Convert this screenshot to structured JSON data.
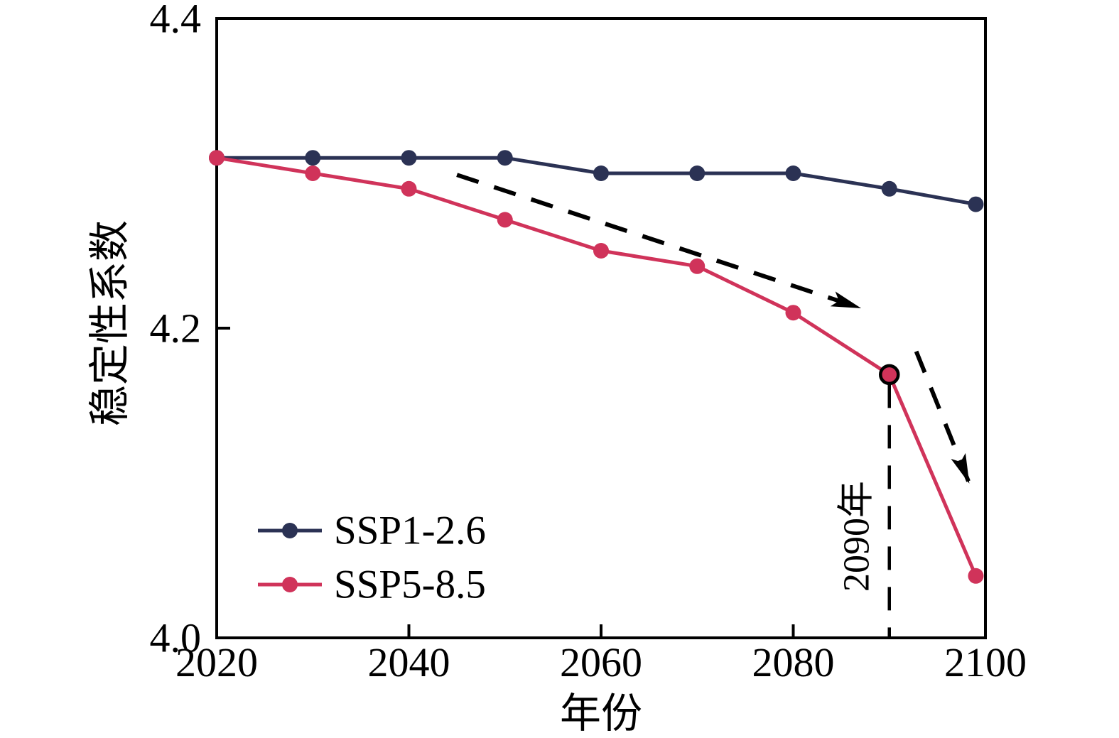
{
  "chart_data": {
    "type": "line",
    "title": "",
    "xlabel": "年份",
    "ylabel": "稳定性系数",
    "x": [
      2020,
      2030,
      2040,
      2050,
      2060,
      2070,
      2080,
      2090,
      2099
    ],
    "series": [
      {
        "name": "SSP1-2.6",
        "color": "#2b3254",
        "values": [
          4.31,
          4.31,
          4.31,
          4.31,
          4.3,
          4.3,
          4.3,
          4.29,
          4.28
        ]
      },
      {
        "name": "SSP5-8.5",
        "color": "#d0335a",
        "values": [
          4.31,
          4.3,
          4.29,
          4.27,
          4.25,
          4.24,
          4.21,
          4.17,
          4.04
        ]
      }
    ],
    "xlim": [
      2020,
      2100
    ],
    "ylim": [
      4.0,
      4.4
    ],
    "x_tick_values": [
      2020,
      2040,
      2060,
      2080,
      2100
    ],
    "x_tick_labels": [
      "2020",
      "2040",
      "2060",
      "2080",
      "2100"
    ],
    "y_tick_values": [
      4.0,
      4.2,
      4.4
    ],
    "y_tick_labels": [
      "4.0",
      "4.2",
      "4.4"
    ],
    "grid": false,
    "legend_position": "lower-left",
    "annotations": {
      "highlighted_point": {
        "series": "SSP5-8.5",
        "x": 2090,
        "value": 4.17,
        "ring_color": "#000000"
      },
      "vline": {
        "x": 2090,
        "y_from": 4.0,
        "y_to": 4.17,
        "style": "dashed",
        "label": "2090年"
      },
      "arrows": [
        {
          "x1": 2045,
          "y1": 4.299,
          "x2": 2087,
          "y2": 4.213,
          "style": "dashed"
        },
        {
          "x1": 2092.8,
          "y1": 4.185,
          "x2": 2098.3,
          "y2": 4.1,
          "style": "dashed"
        }
      ]
    }
  }
}
